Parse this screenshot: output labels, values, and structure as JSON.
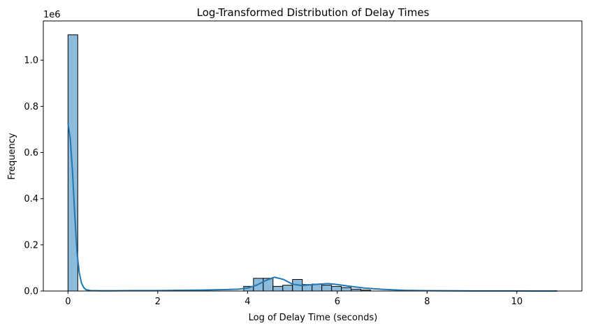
{
  "chart_data": {
    "type": "bar",
    "title": "Log-Transformed Distribution of Delay Times",
    "xlabel": "Log of Delay Time (seconds)",
    "ylabel": "Frequency",
    "y_offset_text": "1e6",
    "xlim": [
      -0.55,
      11.45
    ],
    "ylim": [
      0,
      1.17
    ],
    "xticks": [
      0,
      2,
      4,
      6,
      8,
      10
    ],
    "yticks": [
      0.0,
      0.2,
      0.4,
      0.6,
      0.8,
      1.0
    ],
    "ytick_labels": [
      "0.0",
      "0.2",
      "0.4",
      "0.6",
      "0.8",
      "1.0"
    ],
    "grid": false,
    "colors": {
      "bar_fill": "#8dbbdc",
      "bar_edge": "#000000",
      "kde_line": "#1f77b4"
    },
    "bins": {
      "start": 0.0,
      "width": 0.2175,
      "values": [
        1.11,
        0.0,
        0.0,
        0.0,
        0.0,
        0.0,
        0.0,
        0.0,
        0.0,
        0.0,
        0.0,
        0.0,
        0.0,
        0.0,
        0.0,
        0.0,
        0.0,
        0.0,
        0.02,
        0.055,
        0.055,
        0.02,
        0.025,
        0.05,
        0.028,
        0.03,
        0.025,
        0.02,
        0.015,
        0.008,
        0.004,
        0.0,
        0.0,
        0.0,
        0.0,
        0.0,
        0.0,
        0.0,
        0.0,
        0.0,
        0.0,
        0.0,
        0.0,
        0.0,
        0.0,
        0.0,
        0.0,
        0.0,
        0.0,
        0.0
      ]
    },
    "series": [
      {
        "type": "kde",
        "x": [
          0.0,
          0.05,
          0.1,
          0.15,
          0.2,
          0.25,
          0.3,
          0.35,
          0.4,
          0.5,
          0.7,
          1.0,
          1.5,
          2.0,
          2.5,
          3.0,
          3.5,
          3.8,
          4.0,
          4.2,
          4.4,
          4.6,
          4.8,
          5.0,
          5.2,
          5.4,
          5.6,
          5.8,
          6.0,
          6.3,
          6.6,
          7.0,
          7.5,
          8.0,
          9.0,
          10.0,
          10.9
        ],
        "y": [
          0.725,
          0.66,
          0.52,
          0.33,
          0.17,
          0.08,
          0.035,
          0.015,
          0.006,
          0.002,
          0.001,
          0.001,
          0.002,
          0.002,
          0.003,
          0.004,
          0.006,
          0.008,
          0.013,
          0.025,
          0.045,
          0.06,
          0.05,
          0.03,
          0.024,
          0.027,
          0.03,
          0.032,
          0.028,
          0.02,
          0.013,
          0.007,
          0.003,
          0.0015,
          0.0005,
          0.0002,
          0.0001
        ]
      }
    ]
  }
}
